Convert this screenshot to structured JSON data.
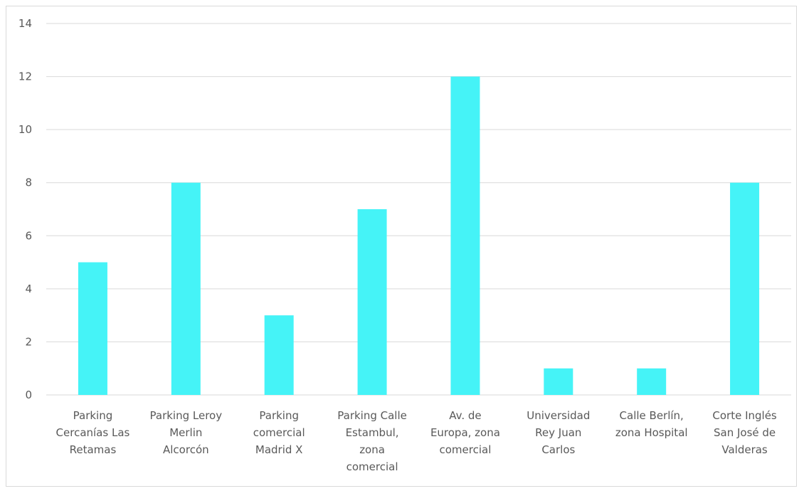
{
  "chart_data": {
    "type": "bar",
    "title": "",
    "xlabel": "",
    "ylabel": "",
    "ylim": [
      0,
      14
    ],
    "ytick_step": 2,
    "yticks": [
      "0",
      "2",
      "4",
      "6",
      "8",
      "10",
      "12",
      "14"
    ],
    "grid": true,
    "legend": "none",
    "bar_color": "#45F3F7",
    "categories": [
      [
        "Parking",
        "Cercanías Las",
        "Retamas"
      ],
      [
        "Parking Leroy",
        "Merlin",
        "Alcorcón"
      ],
      [
        "Parking",
        "comercial",
        "Madrid X"
      ],
      [
        "Parking Calle",
        "Estambul,",
        "zona",
        "comercial"
      ],
      [
        "Av. de",
        "Europa, zona",
        "comercial"
      ],
      [
        "Universidad",
        "Rey Juan",
        "Carlos"
      ],
      [
        "Calle Berlín,",
        "zona Hospital"
      ],
      [
        "Corte Inglés",
        "San José de",
        "Valderas"
      ]
    ],
    "values": [
      5,
      8,
      3,
      7,
      12,
      1,
      1,
      8
    ]
  }
}
